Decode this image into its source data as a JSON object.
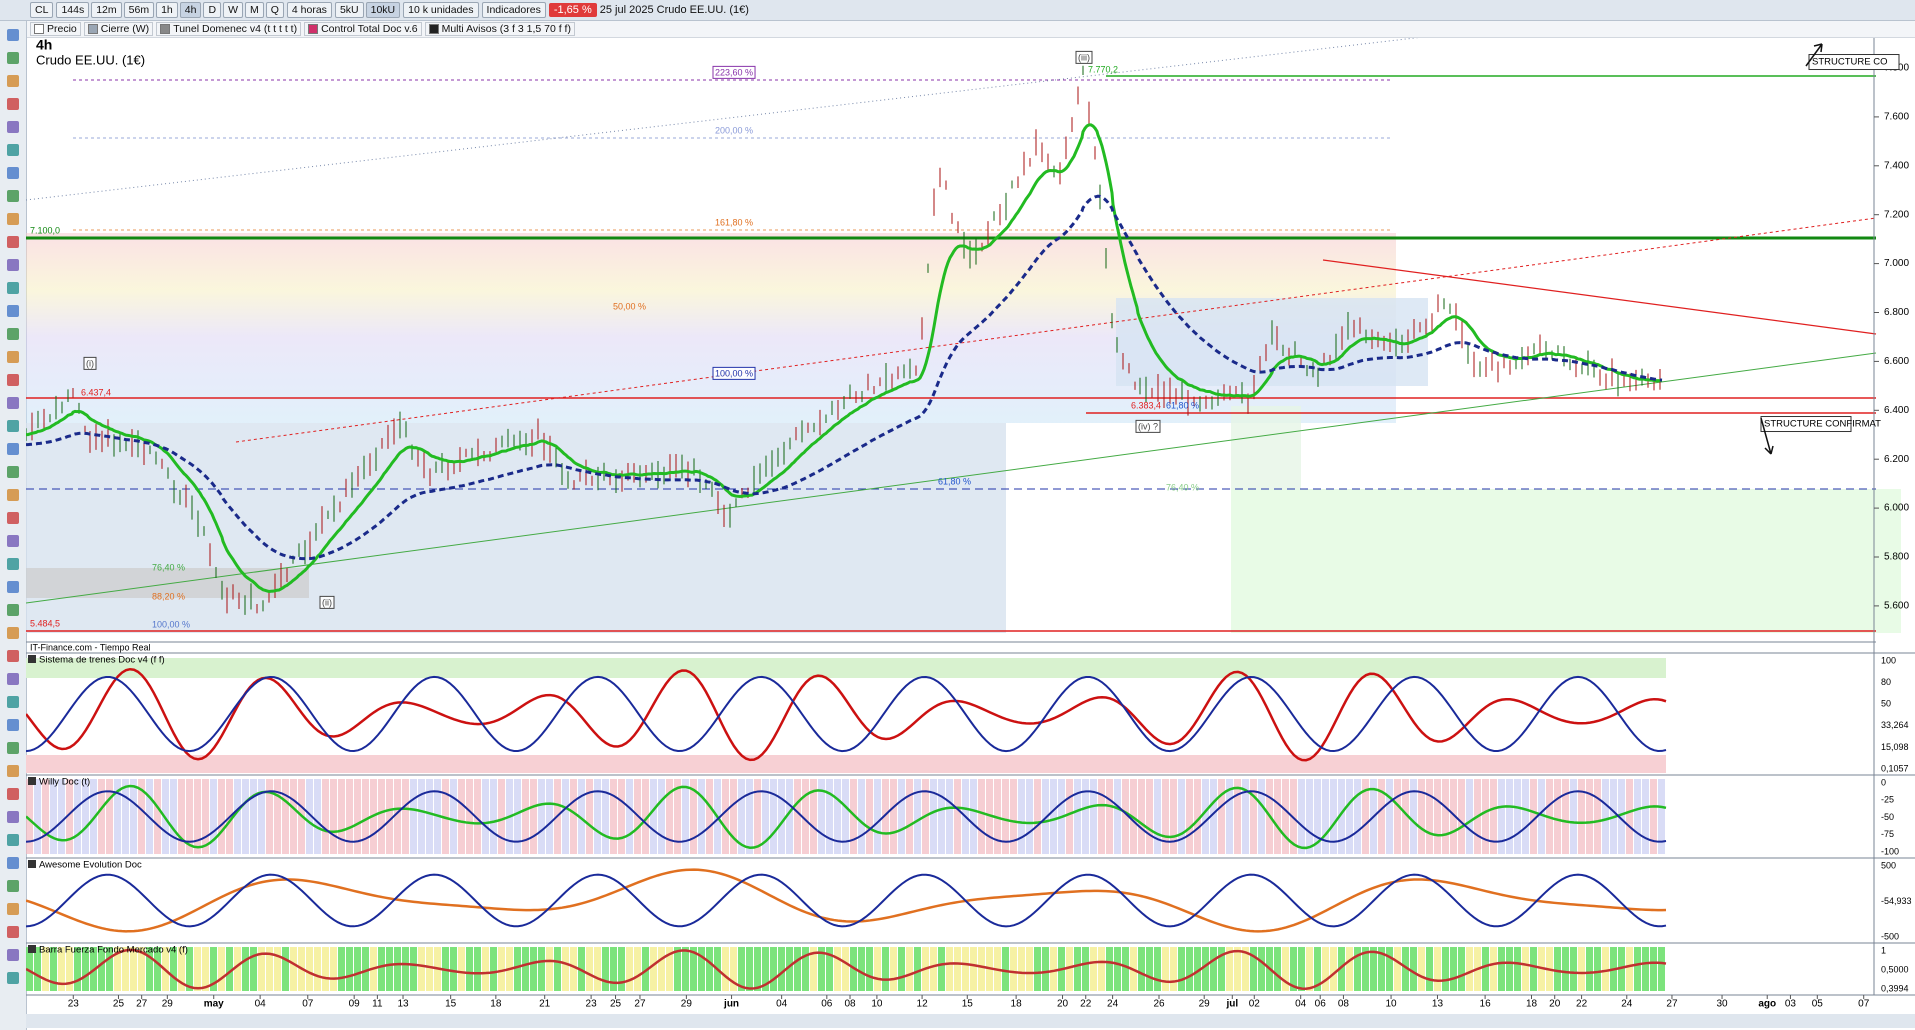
{
  "toolbar": {
    "symbol": "CL",
    "timeframes": [
      "144s",
      "12m",
      "56m",
      "1h",
      "4h",
      "D",
      "W",
      "M",
      "Q"
    ],
    "period": "4 horas",
    "units": [
      "5kU",
      "10kU"
    ],
    "unit_menu": "10 k unidades",
    "indicators": "Indicadores",
    "change": "-1,65 %",
    "date_title": "25 jul 2025  Crudo EE.UU. (1€)"
  },
  "legend": [
    "Precio",
    "Cierre (W)",
    "Tunel Domenec v4 (t t t t t)",
    "Control Total Doc v.6",
    "Multi Avisos (3 f 3 1,5 70 f f)"
  ],
  "chart": {
    "timeframe": "4h",
    "instrument": "Crudo EE.UU. (1€)",
    "source": "IT-Finance.com - Tiempo Real",
    "price_axis": [
      "7.800",
      "7.600",
      "7.400",
      "7.200",
      "7.000",
      "6.800",
      "6.600",
      "6.400",
      "6.200",
      "6.000",
      "5.800",
      "5.600"
    ],
    "annotations": [
      "223,60 %",
      "200,00 %",
      "161,80 %",
      "50,00 %",
      "100,00 %",
      "61,80 %",
      "76,40 %",
      "88,20 %",
      "100,00 %",
      "(i)",
      "(ii)",
      "(iii)",
      "(iv) ?",
      "7.770,2",
      "7.100,0",
      "6.437,4",
      "6.383,4",
      "61,80 %",
      "5.484,5",
      "76,40 %"
    ],
    "structure_labels": [
      "STRUCTURE CO",
      "STRUCTURE CONFIRMAT"
    ]
  },
  "panels": [
    {
      "title": "Sistema de trenes Doc v4 (f f)",
      "axis": [
        "100",
        "80",
        "50",
        "33,264",
        "15,098",
        "0,1057"
      ]
    },
    {
      "title": "Willy Doc (t)",
      "axis": [
        "0",
        "-25",
        "-50",
        "-75",
        "-100"
      ]
    },
    {
      "title": "Awesome Evolution Doc",
      "axis": [
        "500",
        "-54,933",
        "-500"
      ]
    },
    {
      "title": "Barra Fuerza Fondo Mercado v4 (f)",
      "axis": [
        "1",
        "0,5000",
        "0,3994"
      ]
    }
  ],
  "date_axis": [
    "23",
    "25",
    "27",
    "29",
    "may",
    "04",
    "07",
    "09",
    "11",
    "13",
    "15",
    "18",
    "21",
    "23",
    "25",
    "27",
    "29",
    "jun",
    "04",
    "06",
    "08",
    "10",
    "12",
    "15",
    "18",
    "20",
    "22",
    "24",
    "26",
    "29",
    "jul",
    "02",
    "04",
    "06",
    "08",
    "10",
    "13",
    "16",
    "18",
    "20",
    "22",
    "24",
    "27",
    "30",
    "ago",
    "03",
    "05",
    "07"
  ]
}
